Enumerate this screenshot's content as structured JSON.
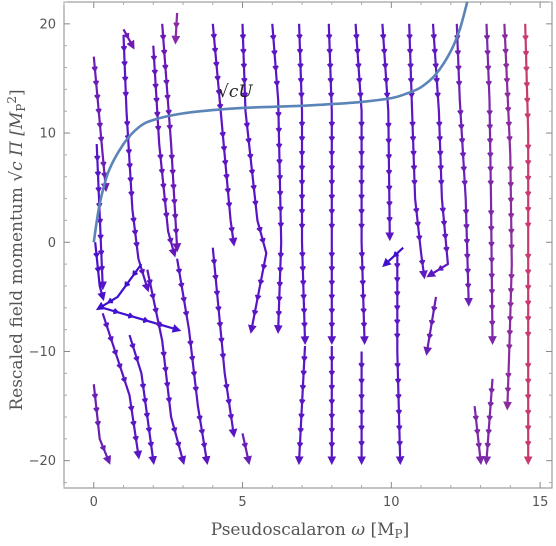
{
  "chart_data": {
    "type": "scatter",
    "subtype": "vector-stream-plot",
    "xlabel_main": "Pseudoscalaron ",
    "xlabel_var": "ω",
    "xlabel_unit": "[M",
    "xlabel_unit_sub": "P",
    "xlabel_unit_close": "]",
    "ylabel_main": "Rescaled field momentum ",
    "ylabel_rest": "c  Π [M",
    "ylabel_unit_sub": "P",
    "ylabel_unit_sup": "2",
    "ylabel_unit_close": "]",
    "annotation": "√cU",
    "xlim": [
      -1,
      15.4
    ],
    "ylim": [
      -22.5,
      22
    ],
    "x_ticks": [
      0,
      5,
      10,
      15
    ],
    "y_ticks": [
      -20,
      -10,
      0,
      10,
      20
    ],
    "grid": false,
    "curve": {
      "name": "√cU",
      "color": "#5B84B8",
      "points": [
        [
          0,
          0
        ],
        [
          0.2,
          3.5
        ],
        [
          0.5,
          6.5
        ],
        [
          1,
          9.0
        ],
        [
          1.5,
          10.5
        ],
        [
          2,
          11.2
        ],
        [
          3,
          11.8
        ],
        [
          4,
          12.1
        ],
        [
          5,
          12.3
        ],
        [
          6,
          12.4
        ],
        [
          7,
          12.5
        ],
        [
          8,
          12.65
        ],
        [
          9,
          12.85
        ],
        [
          10,
          13.2
        ],
        [
          10.5,
          13.6
        ],
        [
          11,
          14.2
        ],
        [
          11.5,
          15.4
        ],
        [
          12,
          17.5
        ],
        [
          12.3,
          19.5
        ],
        [
          12.55,
          22.0
        ]
      ]
    },
    "streams": [
      {
        "points": [
          [
            0.0,
            17.0
          ],
          [
            0.3,
            8.0
          ],
          [
            0.4,
            5.0
          ]
        ],
        "color": "#6a1eb5"
      },
      {
        "points": [
          [
            0.1,
            9.0
          ],
          [
            0.3,
            -4.0
          ]
        ],
        "color": "#5616c8"
      },
      {
        "points": [
          [
            0.05,
            0.0
          ],
          [
            0.2,
            -4.0
          ],
          [
            0.3,
            -5.0
          ]
        ],
        "color": "#4a10cc"
      },
      {
        "points": [
          [
            1.0,
            19.0
          ],
          [
            1.1,
            12.0
          ],
          [
            1.3,
            3.0
          ],
          [
            1.5,
            -1.5
          ],
          [
            1.8,
            -4.2
          ]
        ],
        "color": "#5b15c5"
      },
      {
        "points": [
          [
            1.6,
            -2.0
          ],
          [
            0.8,
            -5.0
          ],
          [
            0.2,
            -6.0
          ]
        ],
        "color": "#3f0fd0"
      },
      {
        "points": [
          [
            1.0,
            19.5
          ],
          [
            1.3,
            18.0
          ]
        ],
        "color": "#6e1ab5"
      },
      {
        "points": [
          [
            2.0,
            18.0
          ],
          [
            2.2,
            9.0
          ],
          [
            2.5,
            1.0
          ],
          [
            2.7,
            -1.0
          ]
        ],
        "color": "#6416bd"
      },
      {
        "points": [
          [
            2.3,
            20.0
          ],
          [
            2.6,
            9.0
          ],
          [
            2.8,
            -0.5
          ]
        ],
        "color": "#6a18b8"
      },
      {
        "points": [
          [
            2.8,
            21.0
          ],
          [
            2.75,
            18.5
          ]
        ],
        "color": "#8a2aa8"
      },
      {
        "points": [
          [
            4.0,
            20.0
          ],
          [
            4.3,
            11.0
          ],
          [
            4.6,
            2.0
          ],
          [
            4.7,
            0.0
          ]
        ],
        "color": "#5e14c2"
      },
      {
        "points": [
          [
            5.0,
            20.0
          ],
          [
            5.1,
            12.0
          ],
          [
            5.5,
            2.0
          ],
          [
            5.8,
            -1.0
          ],
          [
            5.3,
            -8.0
          ]
        ],
        "color": "#5a14c6"
      },
      {
        "points": [
          [
            6.0,
            20.0
          ],
          [
            6.2,
            13.0
          ],
          [
            6.3,
            0.0
          ],
          [
            6.2,
            -8.0
          ]
        ],
        "color": "#5a15c5"
      },
      {
        "points": [
          [
            6.9,
            20.0
          ],
          [
            7.0,
            12.0
          ],
          [
            7.0,
            0.0
          ],
          [
            7.1,
            -9.0
          ]
        ],
        "color": "#5915c6"
      },
      {
        "points": [
          [
            7.9,
            20.0
          ],
          [
            8.0,
            12.0
          ],
          [
            8.0,
            0.0
          ],
          [
            8.0,
            -9.0
          ]
        ],
        "color": "#5a15c5"
      },
      {
        "points": [
          [
            8.8,
            20.0
          ],
          [
            9.0,
            12.0
          ],
          [
            9.0,
            0.0
          ],
          [
            9.1,
            -9.0
          ]
        ],
        "color": "#5b16c4"
      },
      {
        "points": [
          [
            9.7,
            20.0
          ],
          [
            9.9,
            12.0
          ],
          [
            9.95,
            0.5
          ]
        ],
        "color": "#5c16c3"
      },
      {
        "points": [
          [
            10.6,
            20.0
          ],
          [
            10.7,
            12.0
          ],
          [
            10.8,
            4.0
          ],
          [
            11.0,
            -1.0
          ],
          [
            11.1,
            -3.0
          ]
        ],
        "color": "#5e18c1"
      },
      {
        "points": [
          [
            11.4,
            20.0
          ],
          [
            11.6,
            12.0
          ],
          [
            11.7,
            4.0
          ],
          [
            11.9,
            -2.0
          ],
          [
            11.3,
            -3.0
          ]
        ],
        "color": "#5f18c0"
      },
      {
        "points": [
          [
            12.2,
            20.0
          ],
          [
            12.3,
            13.0
          ],
          [
            12.5,
            4.0
          ],
          [
            12.6,
            -5.5
          ]
        ],
        "color": "#6c20b5"
      },
      {
        "points": [
          [
            13.2,
            20.0
          ],
          [
            13.3,
            13.0
          ],
          [
            13.35,
            4.0
          ],
          [
            13.4,
            -9.0
          ]
        ],
        "color": "#7c28a8"
      },
      {
        "points": [
          [
            14.5,
            20.0
          ],
          [
            14.6,
            10.0
          ],
          [
            14.6,
            0.0
          ],
          [
            14.6,
            -10.0
          ],
          [
            14.6,
            -20.0
          ]
        ],
        "color": "#c83a70"
      },
      {
        "points": [
          [
            13.8,
            20.0
          ],
          [
            14.0,
            8.0
          ],
          [
            14.05,
            -2.0
          ],
          [
            13.95,
            -11.0
          ],
          [
            13.9,
            -15.0
          ]
        ],
        "color": "#8a2c9e"
      },
      {
        "points": [
          [
            0.3,
            -6.0
          ],
          [
            2.8,
            -8.0
          ]
        ],
        "color": "#4312cf"
      },
      {
        "points": [
          [
            0.0,
            -13.0
          ],
          [
            0.2,
            -18.0
          ],
          [
            0.5,
            -20.0
          ]
        ],
        "color": "#6a1fb3"
      },
      {
        "points": [
          [
            0.3,
            -6.5
          ],
          [
            1.2,
            -14.0
          ],
          [
            1.5,
            -19.5
          ]
        ],
        "color": "#5a16c3"
      },
      {
        "points": [
          [
            1.2,
            -8.5
          ],
          [
            1.6,
            -12.0
          ],
          [
            2.0,
            -20.0
          ]
        ],
        "color": "#5616c6"
      },
      {
        "points": [
          [
            1.8,
            -2.5
          ],
          [
            2.3,
            -9.0
          ],
          [
            2.6,
            -16.0
          ],
          [
            3.0,
            -20.0
          ]
        ],
        "color": "#5a16c3"
      },
      {
        "points": [
          [
            2.8,
            -1.5
          ],
          [
            3.2,
            -8.0
          ],
          [
            3.5,
            -15.0
          ],
          [
            3.8,
            -20.0
          ]
        ],
        "color": "#5a16c3"
      },
      {
        "points": [
          [
            4.0,
            -0.5
          ],
          [
            4.4,
            -12.0
          ],
          [
            4.7,
            -17.5
          ]
        ],
        "color": "#5a16c3"
      },
      {
        "points": [
          [
            5.0,
            -17.5
          ],
          [
            5.2,
            -20.0
          ]
        ],
        "color": "#6a1fb3"
      },
      {
        "points": [
          [
            7.1,
            -9.5
          ],
          [
            6.9,
            -20.0
          ]
        ],
        "color": "#5a16c3"
      },
      {
        "points": [
          [
            8.0,
            -9.5
          ],
          [
            8.0,
            -20.0
          ]
        ],
        "color": "#5a16c3"
      },
      {
        "points": [
          [
            9.0,
            -10.0
          ],
          [
            9.0,
            -20.0
          ]
        ],
        "color": "#5a16c3"
      },
      {
        "points": [
          [
            10.2,
            -1.0
          ],
          [
            10.2,
            -10.0
          ],
          [
            10.3,
            -20.0
          ]
        ],
        "color": "#5a16c3"
      },
      {
        "points": [
          [
            11.5,
            -5.0
          ],
          [
            11.2,
            -10.0
          ]
        ],
        "color": "#6a1fb3"
      },
      {
        "points": [
          [
            13.4,
            -12.5
          ],
          [
            13.2,
            -20.0
          ]
        ],
        "color": "#7c28a8"
      },
      {
        "points": [
          [
            12.8,
            -15.0
          ],
          [
            13.0,
            -20.0
          ]
        ],
        "color": "#7c28a8"
      },
      {
        "points": [
          [
            10.4,
            -0.5
          ],
          [
            9.8,
            -2.0
          ]
        ],
        "color": "#3f0fd0"
      }
    ]
  }
}
